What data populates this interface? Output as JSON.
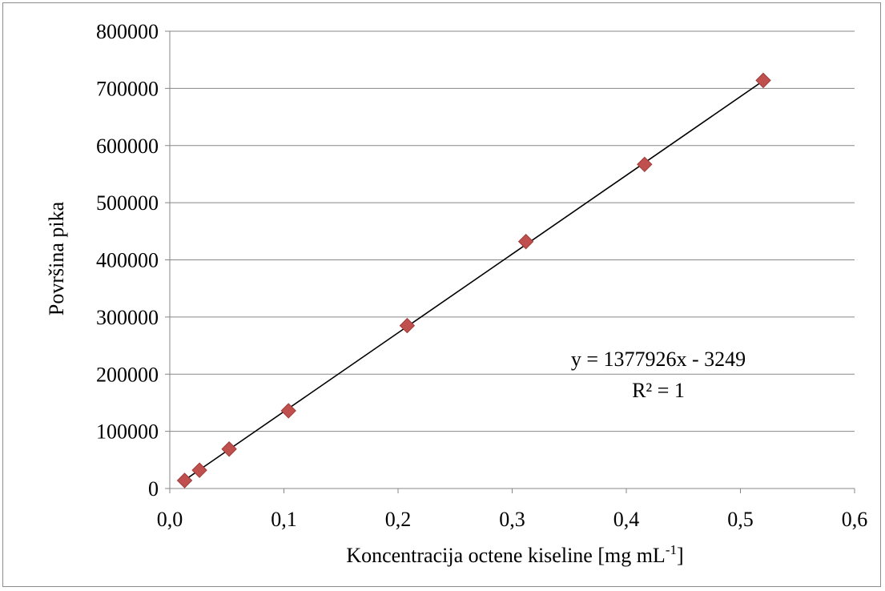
{
  "chart_data": {
    "type": "scatter",
    "title": "",
    "xlabel": "Koncentracija octene kiseline [mg mL",
    "xlabel_sup": "-1",
    "xlabel_end": "]",
    "ylabel": "Površina pika",
    "xlim": [
      0.0,
      0.6
    ],
    "ylim": [
      0,
      800000
    ],
    "x_ticks": [
      "0,0",
      "0,1",
      "0,2",
      "0,3",
      "0,4",
      "0,5",
      "0,6"
    ],
    "y_ticks": [
      "0",
      "100000",
      "200000",
      "300000",
      "400000",
      "500000",
      "600000",
      "700000",
      "800000"
    ],
    "grid": "horizontal",
    "legend": "none",
    "series": [
      {
        "marker": "diamond",
        "color": "#C0504D",
        "x": [
          0.013,
          0.026,
          0.052,
          0.104,
          0.208,
          0.312,
          0.416,
          0.52
        ],
        "y": [
          14000,
          32000,
          69000,
          136000,
          285000,
          432000,
          567000,
          714000
        ]
      }
    ],
    "trendline": {
      "type": "linear",
      "slope": 1377926,
      "intercept": -3249,
      "x_range": [
        0.013,
        0.52
      ],
      "color": "#000000"
    },
    "annotations": {
      "equation": "y = 1377926x - 3249",
      "r_squared": "R² = 1"
    }
  }
}
